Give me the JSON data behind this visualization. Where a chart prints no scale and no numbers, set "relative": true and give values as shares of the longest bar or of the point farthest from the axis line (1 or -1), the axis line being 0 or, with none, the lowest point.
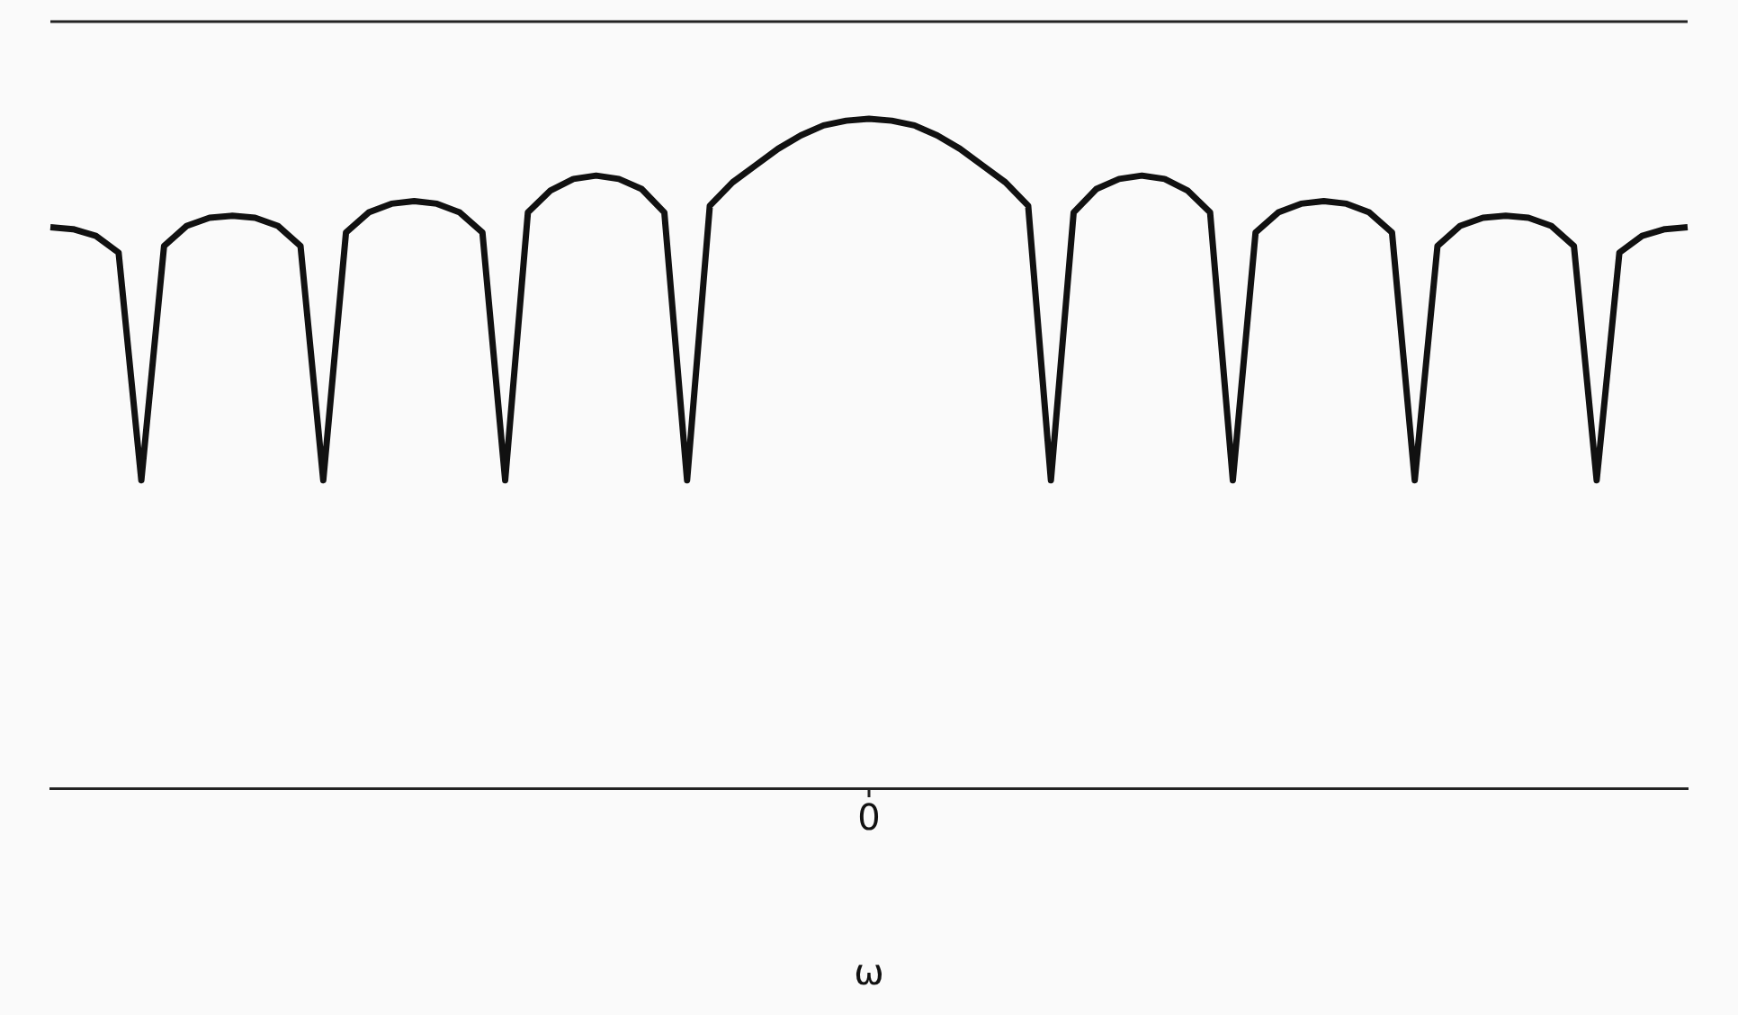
{
  "chart_data": {
    "type": "line",
    "xlabel": "ω",
    "relative": true,
    "color": "#111111",
    "annotations": [
      "0"
    ],
    "categories": [
      null,
      null,
      null,
      null,
      null,
      null,
      null,
      null,
      null,
      null,
      null,
      null,
      null,
      null,
      null,
      null,
      null,
      null,
      null,
      null,
      null,
      null,
      null,
      null,
      null,
      null,
      null,
      null,
      null,
      null,
      null,
      null,
      null,
      null,
      null,
      null,
      null,
      null,
      null,
      null,
      null,
      null,
      null,
      null,
      null,
      null,
      null,
      null,
      null,
      null,
      null,
      null,
      null,
      null,
      null,
      null,
      null,
      null,
      null,
      null,
      null,
      null,
      null,
      null,
      null,
      null,
      null,
      null,
      null,
      null,
      null,
      null,
      null
    ],
    "values": [
      0.838,
      0.835,
      0.825,
      0.8,
      0.46,
      0.81,
      0.84,
      0.852,
      0.855,
      0.852,
      0.84,
      0.81,
      0.46,
      0.83,
      0.86,
      0.873,
      0.877,
      0.873,
      0.86,
      0.83,
      0.46,
      0.86,
      0.893,
      0.91,
      0.915,
      0.91,
      0.895,
      0.86,
      0.46,
      0.87,
      0.905,
      0.93,
      0.955,
      0.975,
      0.99,
      0.997,
      1.0,
      0.997,
      0.99,
      0.975,
      0.955,
      0.93,
      0.905,
      0.87,
      0.46,
      0.86,
      0.895,
      0.91,
      0.915,
      0.91,
      0.893,
      0.86,
      0.46,
      0.83,
      0.86,
      0.873,
      0.877,
      0.873,
      0.86,
      0.83,
      0.46,
      0.81,
      0.84,
      0.852,
      0.855,
      0.852,
      0.84,
      0.81,
      0.46,
      0.8,
      0.825,
      0.835,
      0.838
    ]
  }
}
